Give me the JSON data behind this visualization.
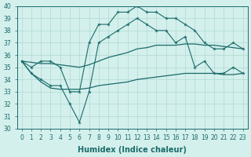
{
  "xlabel": "Humidex (Indice chaleur)",
  "hours": [
    0,
    1,
    2,
    3,
    4,
    5,
    6,
    7,
    8,
    9,
    10,
    11,
    12,
    13,
    14,
    15,
    16,
    17,
    18,
    19,
    20,
    21,
    22,
    23
  ],
  "zigzag_high": [
    35.5,
    35.0,
    35.5,
    35.5,
    35.0,
    33.0,
    33.0,
    37.0,
    38.5,
    38.5,
    39.5,
    39.5,
    40.0,
    39.5,
    39.5,
    39.0,
    39.0,
    38.5,
    38.0,
    37.0,
    36.5,
    36.5,
    37.0,
    36.5
  ],
  "zigzag_low": [
    35.5,
    34.5,
    34.0,
    33.5,
    33.5,
    32.0,
    30.5,
    33.0,
    37.0,
    37.5,
    38.0,
    38.5,
    39.0,
    38.5,
    38.0,
    38.0,
    37.0,
    37.5,
    35.0,
    35.5,
    34.5,
    34.5,
    35.0,
    34.5
  ],
  "smooth_upper": [
    35.5,
    35.4,
    35.3,
    35.3,
    35.2,
    35.1,
    35.0,
    35.2,
    35.5,
    35.8,
    36.0,
    36.2,
    36.5,
    36.6,
    36.8,
    36.8,
    36.8,
    36.9,
    36.9,
    36.8,
    36.8,
    36.7,
    36.6,
    36.5
  ],
  "smooth_lower": [
    35.5,
    34.5,
    33.8,
    33.3,
    33.2,
    33.2,
    33.2,
    33.3,
    33.5,
    33.6,
    33.7,
    33.8,
    34.0,
    34.1,
    34.2,
    34.3,
    34.4,
    34.5,
    34.5,
    34.5,
    34.5,
    34.4,
    34.4,
    34.5
  ],
  "line_color": "#1a6b6b",
  "bg_color": "#d4f0ec",
  "grid_color": "#aed8d2",
  "ylim": [
    30,
    40
  ],
  "yticks": [
    30,
    31,
    32,
    33,
    34,
    35,
    36,
    37,
    38,
    39,
    40
  ]
}
